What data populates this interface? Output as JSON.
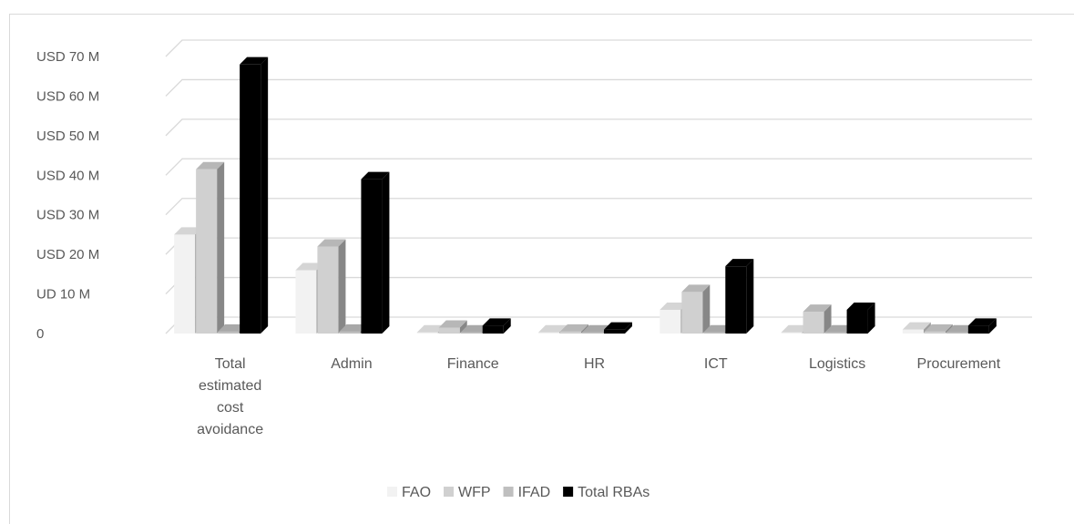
{
  "chart_data": {
    "type": "bar",
    "categories": [
      [
        "Total",
        "estimated",
        "cost",
        "avoidance"
      ],
      [
        "Admin"
      ],
      [
        "Finance"
      ],
      [
        "HR"
      ],
      [
        "ICT"
      ],
      [
        "Logistics"
      ],
      [
        "Procurement"
      ]
    ],
    "series": [
      {
        "name": "FAO",
        "values": [
          25,
          16,
          0.3,
          0.3,
          6,
          0.3,
          1
        ],
        "color": "#f2f2f2"
      },
      {
        "name": "WFP",
        "values": [
          41.5,
          22,
          1.5,
          0.5,
          10.5,
          5.5,
          0.5
        ],
        "color": "#d0d0d0"
      },
      {
        "name": "IFAD",
        "values": [
          0.5,
          0.5,
          0.3,
          0.3,
          0.3,
          0.3,
          0.3
        ],
        "color": "#bfbfbf"
      },
      {
        "name": "Total RBAs",
        "values": [
          68,
          39,
          2,
          1,
          17,
          6,
          2
        ],
        "color": "#000000"
      }
    ],
    "ytick_labels": [
      "0",
      "UD 10 M",
      "USD 20 M",
      "USD 30 M",
      "USD 40 M",
      "USD 50 M",
      "USD 60 M",
      "USD 70 M"
    ],
    "ylim": [
      0,
      70
    ],
    "grid": true,
    "legend_position": "bottom-center"
  }
}
